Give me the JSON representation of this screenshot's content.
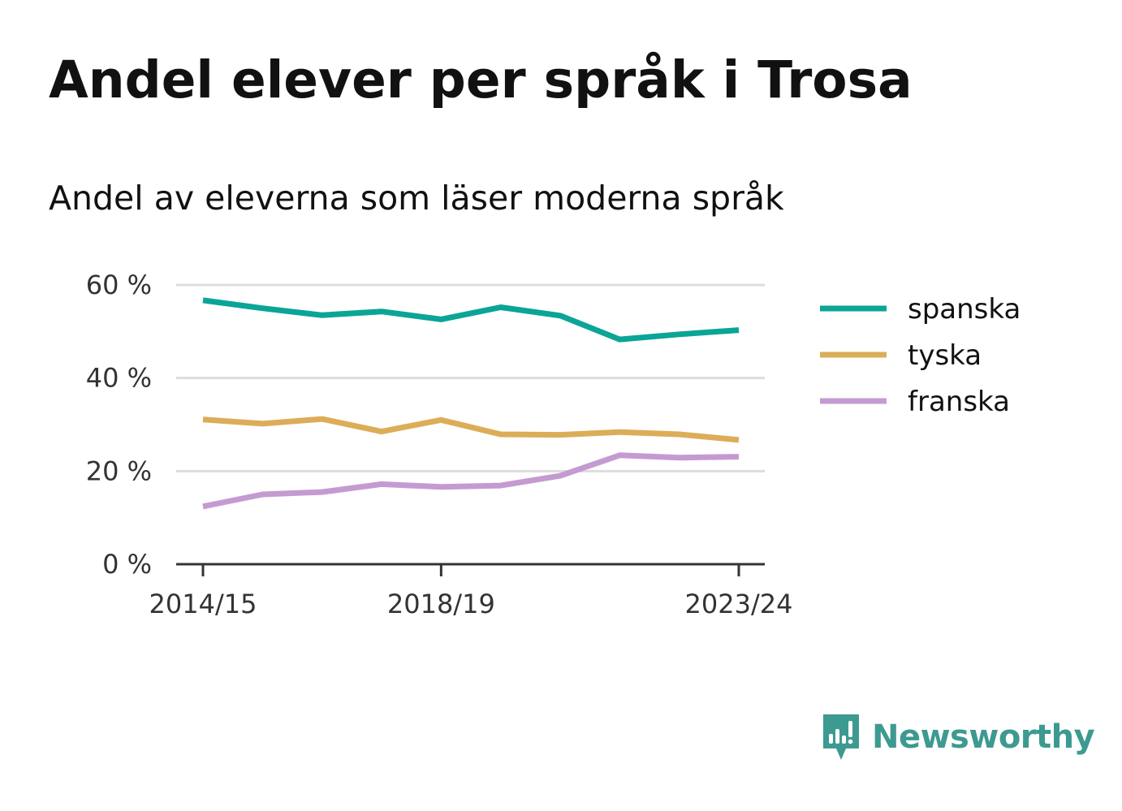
{
  "title": "Andel elever per språk i Trosa",
  "subtitle": "Andel av eleverna som läser moderna språk",
  "brand": {
    "name": "Newsworthy",
    "color": "#3d9a90",
    "icon": "newsworthy-logo-icon"
  },
  "chart_data": {
    "type": "line",
    "x": [
      "2014/15",
      "2015/16",
      "2016/17",
      "2017/18",
      "2018/19",
      "2019/20",
      "2020/21",
      "2021/22",
      "2022/23",
      "2023/24"
    ],
    "x_tick_labels": [
      "2014/15",
      "2018/19",
      "2023/24"
    ],
    "y_ticks": [
      0,
      20,
      40,
      60
    ],
    "y_tick_labels": [
      "0 %",
      "20 %",
      "40 %",
      "60 %"
    ],
    "ylim": [
      0,
      60
    ],
    "grid": true,
    "legend_position": "right",
    "series": [
      {
        "name": "spanska",
        "color": "#0aa597",
        "values": [
          56.7,
          55.0,
          53.5,
          54.3,
          52.6,
          55.2,
          53.4,
          48.3,
          49.4,
          50.3
        ]
      },
      {
        "name": "tyska",
        "color": "#dcad58",
        "values": [
          31.1,
          30.2,
          31.2,
          28.5,
          31.0,
          27.9,
          27.8,
          28.4,
          27.9,
          26.7
        ]
      },
      {
        "name": "franska",
        "color": "#c49bd1",
        "values": [
          12.4,
          15.0,
          15.5,
          17.2,
          16.6,
          16.9,
          19.0,
          23.4,
          22.9,
          23.1
        ]
      }
    ]
  }
}
